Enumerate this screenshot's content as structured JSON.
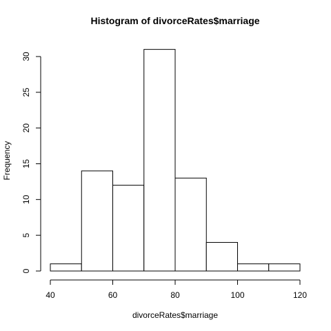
{
  "chart_data": {
    "type": "bar",
    "title": "Histogram of divorceRates$marriage",
    "xlabel": "divorceRates$marriage",
    "ylabel": "Frequency",
    "bins": [
      {
        "from": 40,
        "to": 50,
        "count": 1
      },
      {
        "from": 50,
        "to": 60,
        "count": 14
      },
      {
        "from": 60,
        "to": 70,
        "count": 12
      },
      {
        "from": 70,
        "to": 80,
        "count": 31
      },
      {
        "from": 80,
        "to": 90,
        "count": 13
      },
      {
        "from": 90,
        "to": 100,
        "count": 4
      },
      {
        "from": 100,
        "to": 110,
        "count": 1
      },
      {
        "from": 110,
        "to": 120,
        "count": 1
      }
    ],
    "xlim": [
      40,
      120
    ],
    "ylim": [
      0,
      31
    ],
    "xticks": [
      "40",
      "60",
      "80",
      "100",
      "120"
    ],
    "yticks": [
      "0",
      "5",
      "10",
      "15",
      "20",
      "25",
      "30"
    ],
    "grid": false,
    "colors": {
      "fill": "#ffffff",
      "stroke": "#000000"
    }
  }
}
